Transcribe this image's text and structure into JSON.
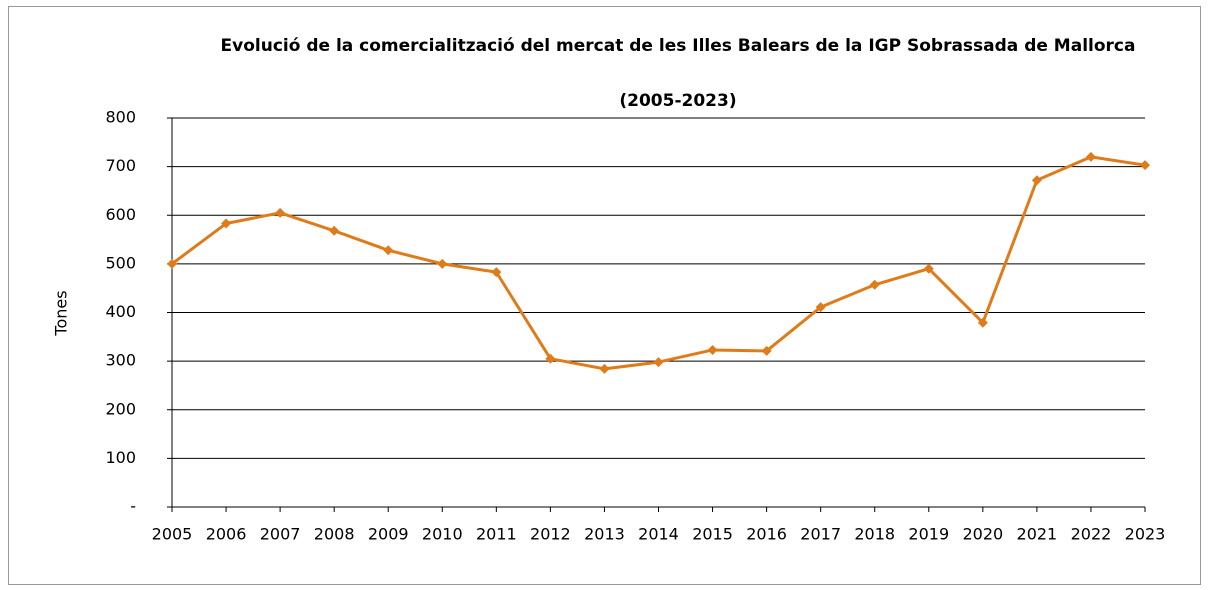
{
  "chart_data": {
    "type": "line",
    "title": "Evolució de la comercialització del mercat de les Illes Balears  de la IGP Sobrassada de Mallorca",
    "subtitle": "(2005-2023)",
    "y_label": "Tones",
    "categories": [
      "2005",
      "2006",
      "2007",
      "2008",
      "2009",
      "2010",
      "2011",
      "2012",
      "2013",
      "2014",
      "2015",
      "2016",
      "2017",
      "2018",
      "2019",
      "2020",
      "2021",
      "2022",
      "2023"
    ],
    "series": [
      {
        "name": "Tones",
        "color": "#e07b1a",
        "values": [
          500,
          583,
          605,
          568,
          528,
          500,
          483,
          305,
          284,
          298,
          323,
          321,
          411,
          457,
          490,
          379,
          672,
          720,
          703
        ]
      }
    ],
    "ylim": [
      0,
      800
    ],
    "yticks": [
      {
        "value": 0,
        "label": "-"
      },
      100,
      200,
      300,
      400,
      500,
      600,
      700,
      800
    ],
    "grid": true
  }
}
